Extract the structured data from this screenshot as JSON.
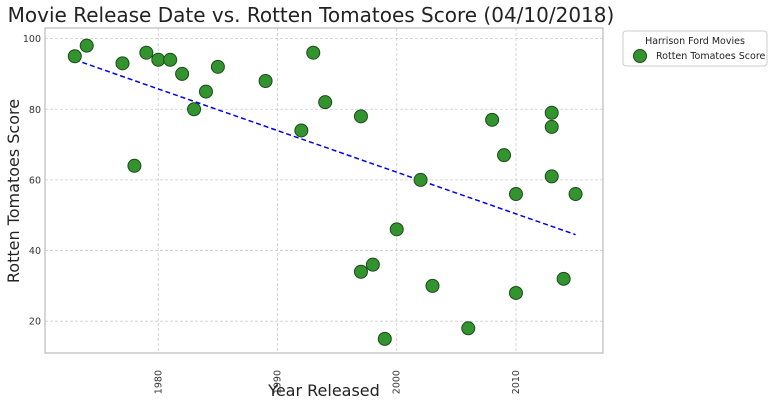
{
  "chart_data": {
    "type": "scatter",
    "title": "Movie Release Date vs. Rotten Tomatoes Score (04/10/2018)",
    "xlabel": "Year Released",
    "ylabel": "Rotten Tomatoes Score",
    "xlim": [
      1970.5,
      2017.3
    ],
    "ylim": [
      11,
      103
    ],
    "x_ticks": [
      1980,
      1990,
      2000,
      2010
    ],
    "y_ticks": [
      20,
      40,
      60,
      80,
      100
    ],
    "grid": true,
    "legend": {
      "title": "Harrison Ford Movies",
      "entries": [
        "Rotten Tomatoes Score"
      ],
      "placement": "outside-top-right"
    },
    "series": [
      {
        "name": "Rotten Tomatoes Score",
        "color": "#33942f",
        "edge_color": "#1c4a1a",
        "points": [
          {
            "x": 1973,
            "y": 95
          },
          {
            "x": 1974,
            "y": 98
          },
          {
            "x": 1977,
            "y": 93
          },
          {
            "x": 1978,
            "y": 64
          },
          {
            "x": 1979,
            "y": 96
          },
          {
            "x": 1980,
            "y": 94
          },
          {
            "x": 1981,
            "y": 94
          },
          {
            "x": 1982,
            "y": 90
          },
          {
            "x": 1983,
            "y": 80
          },
          {
            "x": 1984,
            "y": 85
          },
          {
            "x": 1985,
            "y": 92
          },
          {
            "x": 1989,
            "y": 88
          },
          {
            "x": 1992,
            "y": 74
          },
          {
            "x": 1993,
            "y": 96
          },
          {
            "x": 1994,
            "y": 82
          },
          {
            "x": 1997,
            "y": 78
          },
          {
            "x": 1997,
            "y": 34
          },
          {
            "x": 1998,
            "y": 36
          },
          {
            "x": 1999,
            "y": 15
          },
          {
            "x": 2000,
            "y": 46
          },
          {
            "x": 2002,
            "y": 60
          },
          {
            "x": 2003,
            "y": 30
          },
          {
            "x": 2006,
            "y": 18
          },
          {
            "x": 2008,
            "y": 77
          },
          {
            "x": 2009,
            "y": 67
          },
          {
            "x": 2010,
            "y": 56
          },
          {
            "x": 2010,
            "y": 28
          },
          {
            "x": 2013,
            "y": 79
          },
          {
            "x": 2013,
            "y": 75
          },
          {
            "x": 2013,
            "y": 61
          },
          {
            "x": 2014,
            "y": 32
          },
          {
            "x": 2015,
            "y": 56
          }
        ]
      }
    ],
    "trendline": {
      "color": "#0000ee",
      "style": "dashed",
      "start": {
        "x": 1973,
        "y": 94
      },
      "end": {
        "x": 2015,
        "y": 44.5
      }
    }
  }
}
